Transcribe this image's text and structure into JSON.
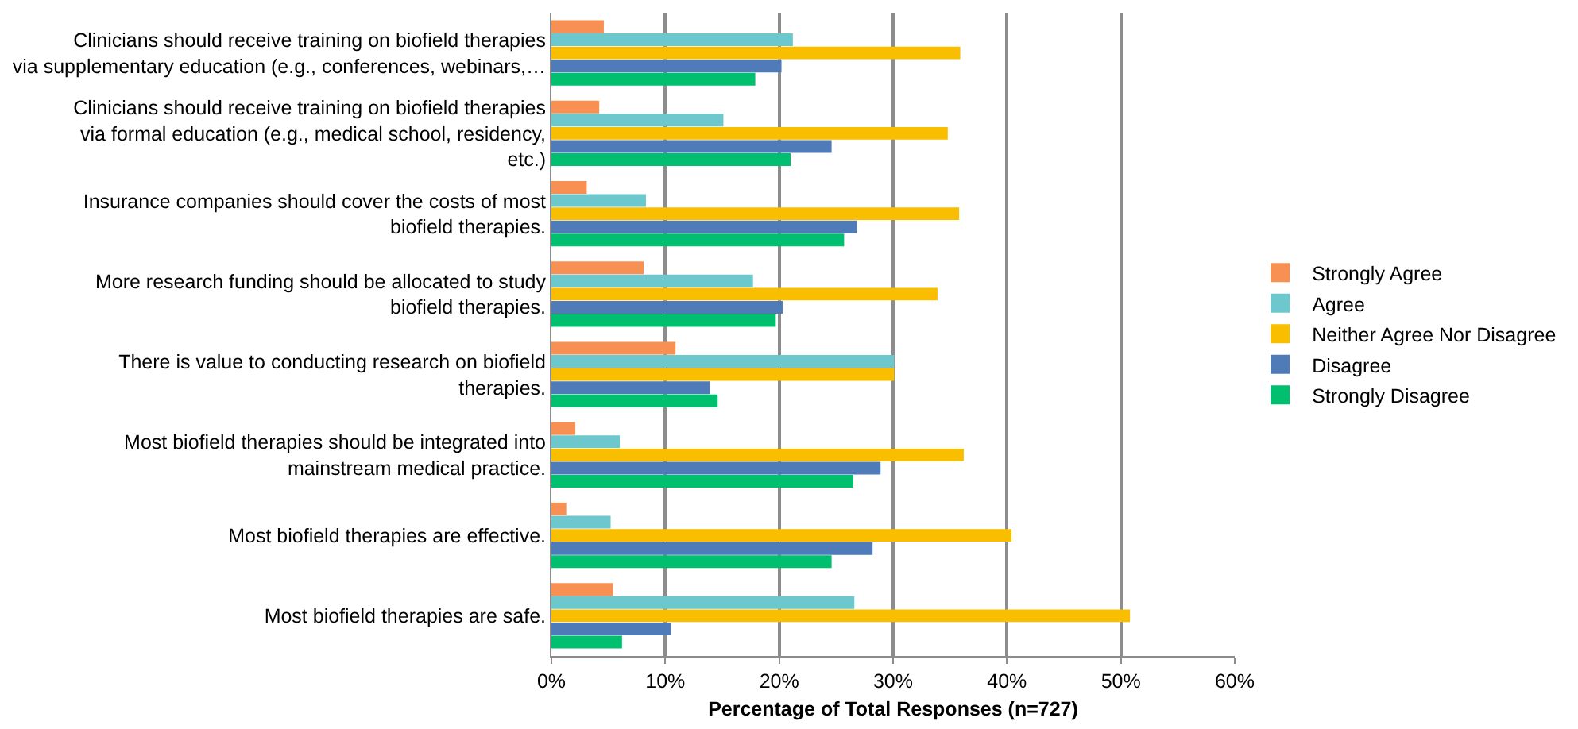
{
  "chart_data": {
    "type": "bar",
    "orientation": "horizontal",
    "xlabel": "Percentage of Total Responses (n=727)",
    "categories": [
      "Clinicians should receive training on biofield therapies via supplementary education (e.g., conferences, webinars,…",
      "Clinicians should receive training on biofield therapies via formal education (e.g., medical school, residency, etc.)",
      "Insurance companies should cover the costs of most biofield therapies.",
      "More research funding should be allocated to study biofield therapies.",
      "There is value to conducting research on biofield therapies.",
      "Most biofield therapies should be integrated into mainstream medical practice.",
      "Most biofield therapies are effective.",
      "Most biofield therapies are safe."
    ],
    "series": [
      {
        "name": "Strongly Agree",
        "color": "#f79052",
        "values": [
          4.6,
          4.2,
          3.1,
          8.1,
          10.9,
          2.1,
          1.3,
          5.4
        ]
      },
      {
        "name": "Agree",
        "color": "#6cc8cc",
        "values": [
          21.2,
          15.1,
          8.3,
          17.7,
          30.1,
          6.0,
          5.2,
          26.6
        ]
      },
      {
        "name": "Neither Agree Nor Disagree",
        "color": "#f9be00",
        "values": [
          35.9,
          34.8,
          35.8,
          33.9,
          30.1,
          36.2,
          40.4,
          50.8
        ]
      },
      {
        "name": "Disagree",
        "color": "#4f7cb8",
        "values": [
          20.2,
          24.6,
          26.8,
          20.3,
          13.9,
          28.9,
          28.2,
          10.5
        ]
      },
      {
        "name": "Strongly Disagree",
        "color": "#00c070",
        "values": [
          17.9,
          21.0,
          25.7,
          19.7,
          14.6,
          26.5,
          24.6,
          6.2
        ]
      }
    ],
    "xlim": [
      0,
      60
    ],
    "xticks": [
      {
        "value": 0,
        "label": "0%"
      },
      {
        "value": 10,
        "label": "10%"
      },
      {
        "value": 20,
        "label": "20%"
      },
      {
        "value": 30,
        "label": "30%"
      },
      {
        "value": 40,
        "label": "40%"
      },
      {
        "value": 50,
        "label": "50%"
      },
      {
        "value": 60,
        "label": "60%"
      }
    ],
    "grid": "x",
    "legend": "right"
  }
}
